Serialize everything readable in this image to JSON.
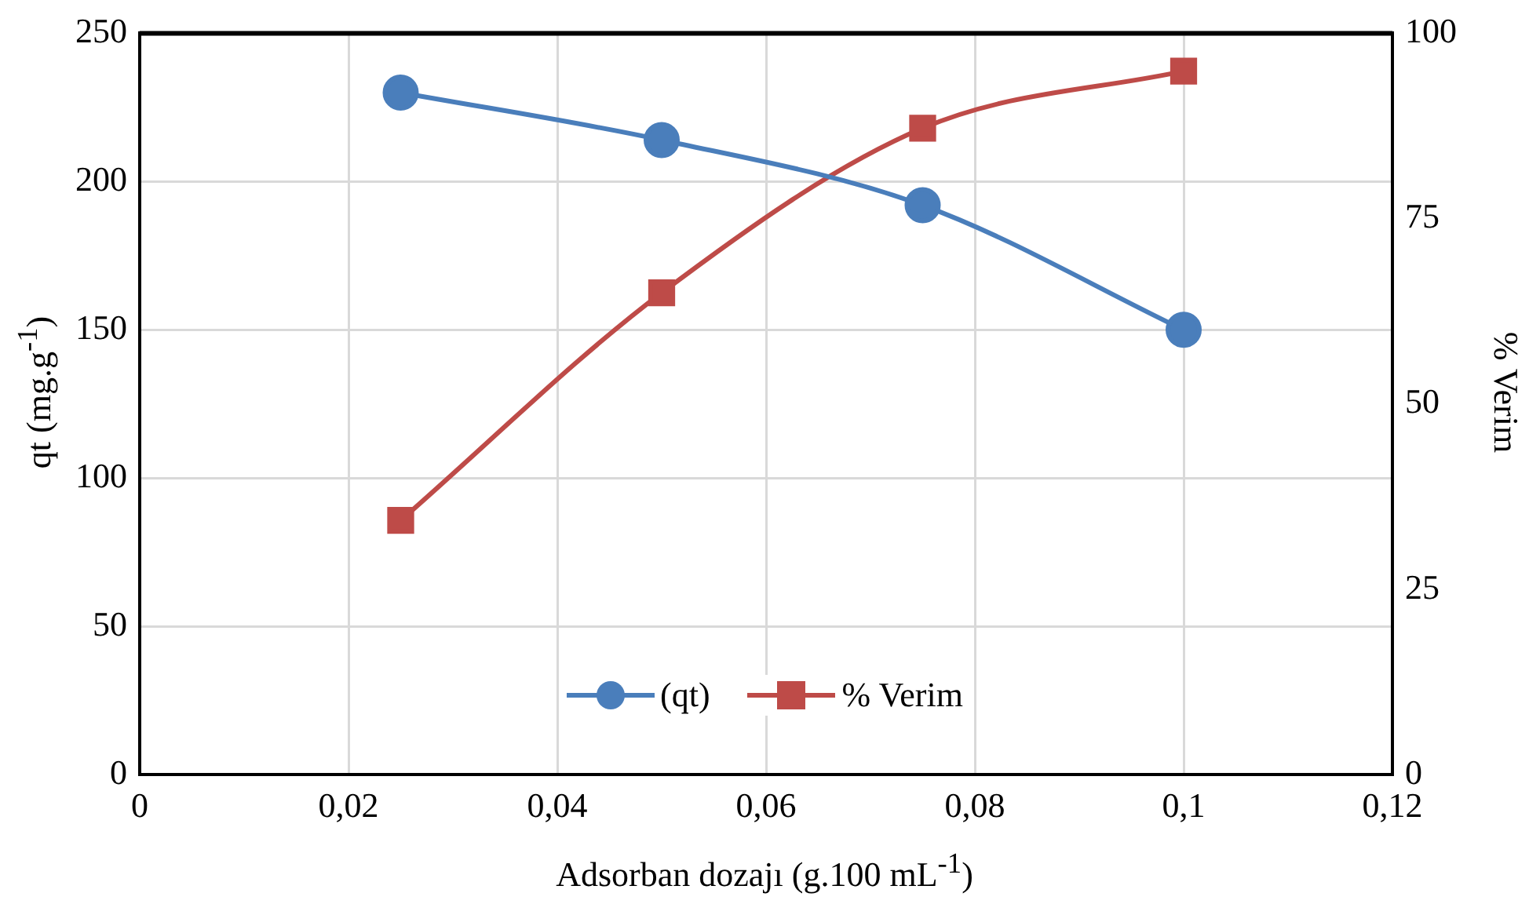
{
  "chart_data": {
    "type": "line",
    "xlabel": "Adsorban dozajı (g.100 mL$^{-1}$)",
    "ylabel": "qt (mg.g$^{-1}$)",
    "y2label": "% Verim",
    "x": [
      0.025,
      0.05,
      0.075,
      0.1
    ],
    "series": [
      {
        "name": "(qt)",
        "color": "#4a7ebb",
        "values": [
          230,
          214,
          192,
          150
        ],
        "marker": "circle"
      },
      {
        "name": "% Verim",
        "color": "#be4b48",
        "values": [
          34.3,
          65,
          87.2,
          94.9
        ],
        "marker": "square",
        "axis": "y2"
      }
    ],
    "xlim": [
      0,
      0.12
    ],
    "xticks": [
      0,
      {
        "value": 0.02,
        "label": "0,02"
      },
      {
        "value": 0.04,
        "label": "0,04"
      },
      {
        "value": 0.06,
        "label": "0,06"
      },
      {
        "value": 0.08,
        "label": "0,08"
      },
      {
        "value": 0.1,
        "label": "0,1"
      },
      {
        "value": 0.12,
        "label": "0,12"
      }
    ],
    "ylim": [
      0,
      250
    ],
    "yticks": [
      0,
      50,
      100,
      150,
      200,
      250
    ],
    "y2lim": [
      0,
      100
    ],
    "y2ticks": [
      0,
      25,
      50,
      75,
      100
    ],
    "grid": true,
    "legend": "bottom",
    "line_style": "solid"
  }
}
